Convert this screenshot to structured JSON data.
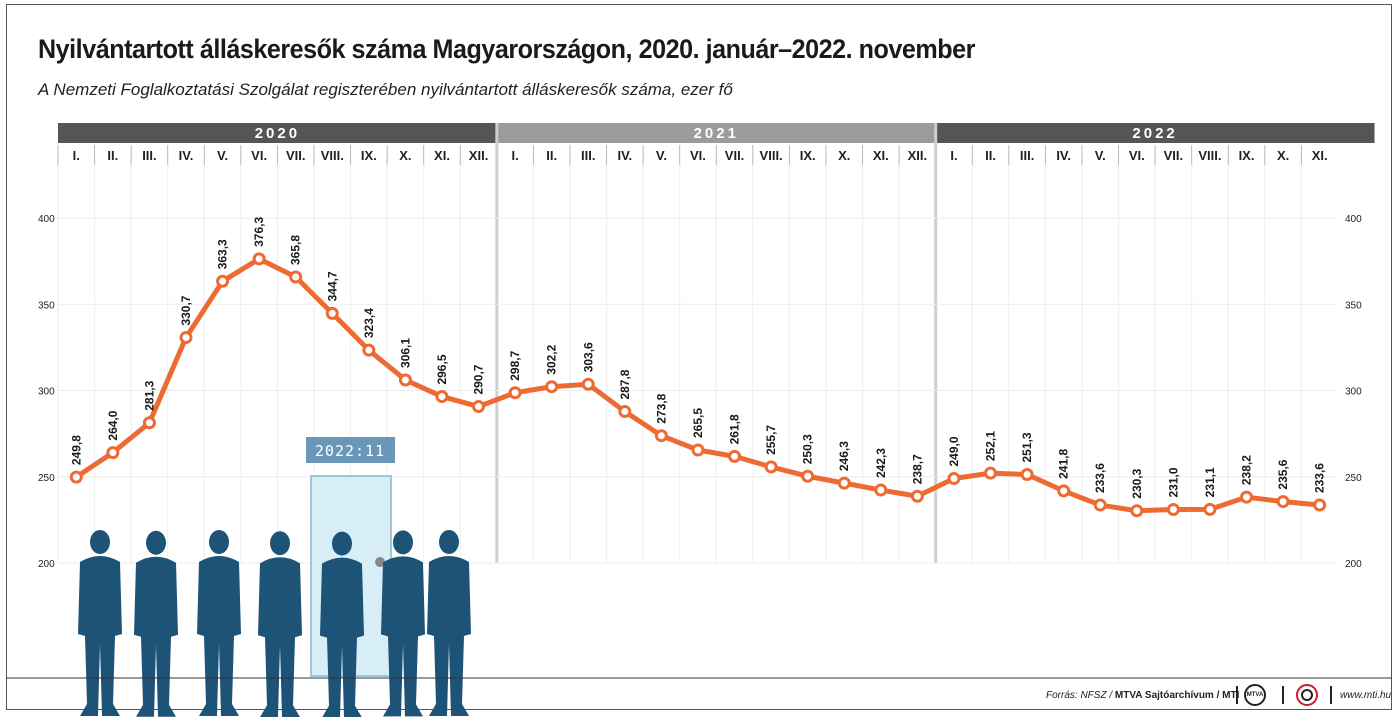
{
  "title": "Nyilvántartott álláskeresők száma Magyarországon, 2020. január–2022. november",
  "subtitle": "A Nemzeti Foglalkoztatási Szolgálat regiszterében nyilvántartott álláskeresők száma, ezer fő",
  "door_label": "2022:11",
  "footer": {
    "source_prefix": "Forrás: NFSZ / ",
    "source_bold": "MTVA Sajtóarchívum / MTI",
    "logo_mtva": "MTVA",
    "url": "www.mti.hu"
  },
  "colors": {
    "line": "#ee6a33",
    "year_dark": "#555555",
    "year_light": "#9b9b9b",
    "silhouette": "#1e5378",
    "door_fill": "#d8eef6",
    "door_label_bg": "#6a96b8"
  },
  "chart_data": {
    "type": "line",
    "title": "Nyilvántartott álláskeresők száma Magyarországon, 2020. január–2022. november",
    "ylabel": "",
    "ylim": [
      200,
      400
    ],
    "yticks": [
      200,
      250,
      300,
      350,
      400
    ],
    "years": [
      {
        "label": "2020",
        "months": [
          "I.",
          "II.",
          "III.",
          "IV.",
          "V.",
          "VI.",
          "VII.",
          "VIII.",
          "IX.",
          "X.",
          "XI.",
          "XII."
        ]
      },
      {
        "label": "2021",
        "months": [
          "I.",
          "II.",
          "III.",
          "IV.",
          "V.",
          "VI.",
          "VII.",
          "VIII.",
          "IX.",
          "X.",
          "XI.",
          "XII."
        ]
      },
      {
        "label": "2022",
        "months": [
          "I.",
          "II.",
          "III.",
          "IV.",
          "V.",
          "VI.",
          "VII.",
          "VIII.",
          "IX.",
          "X.",
          "XI."
        ]
      }
    ],
    "values": [
      249.8,
      264.0,
      281.3,
      330.7,
      363.3,
      376.3,
      365.8,
      344.7,
      323.4,
      306.1,
      296.5,
      290.7,
      298.7,
      302.2,
      303.6,
      287.8,
      273.8,
      265.5,
      261.8,
      255.7,
      250.3,
      246.3,
      242.3,
      238.7,
      249.0,
      252.1,
      251.3,
      241.8,
      233.6,
      230.3,
      231.0,
      231.1,
      238.2,
      235.6,
      233.6
    ],
    "labels": [
      "249,8",
      "264,0",
      "281,3",
      "330,7",
      "363,3",
      "376,3",
      "365,8",
      "344,7",
      "323,4",
      "306,1",
      "296,5",
      "290,7",
      "298,7",
      "302,2",
      "303,6",
      "287,8",
      "273,8",
      "265,5",
      "261,8",
      "255,7",
      "250,3",
      "246,3",
      "242,3",
      "238,7",
      "249,0",
      "252,1",
      "251,3",
      "241,8",
      "233,6",
      "230,3",
      "231,0",
      "231,1",
      "238,2",
      "235,6",
      "233,6"
    ],
    "grid": true
  }
}
